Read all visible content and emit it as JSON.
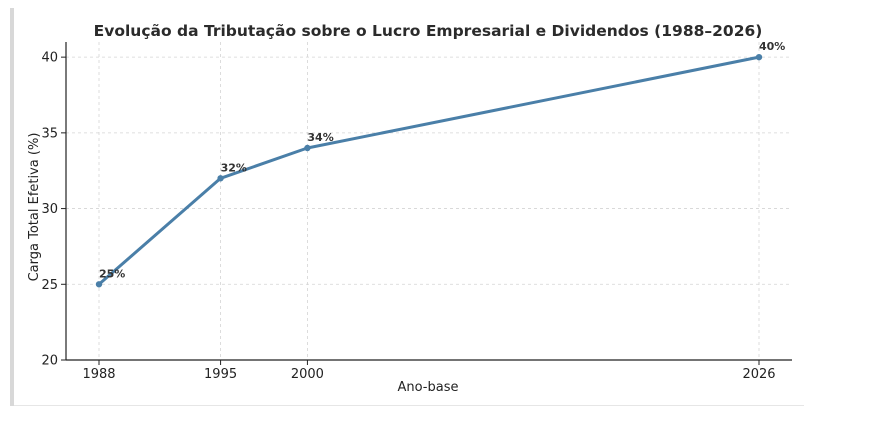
{
  "chart_data": {
    "type": "line",
    "title": "Evolução da Tributação sobre o Lucro Empresarial e Dividendos (1988–2026)",
    "xlabel": "Ano-base",
    "ylabel": "Carga Total Efetiva (%)",
    "x": [
      1988,
      1995,
      2000,
      2026
    ],
    "series": [
      {
        "name": "Carga Total Efetiva",
        "values": [
          25,
          32,
          34,
          40
        ]
      }
    ],
    "data_labels": [
      "25%",
      "32%",
      "34%",
      "40%"
    ],
    "x_ticks": [
      "1988",
      "1995",
      "2000",
      "2026"
    ],
    "y_ticks": [
      "20",
      "25",
      "30",
      "35",
      "40"
    ],
    "y_tick_values": [
      20,
      25,
      30,
      35,
      40
    ],
    "ylim": [
      20,
      41
    ],
    "xlim": [
      1986.1,
      2027.9
    ],
    "grid": true,
    "line_color": "#4a7fa8"
  }
}
